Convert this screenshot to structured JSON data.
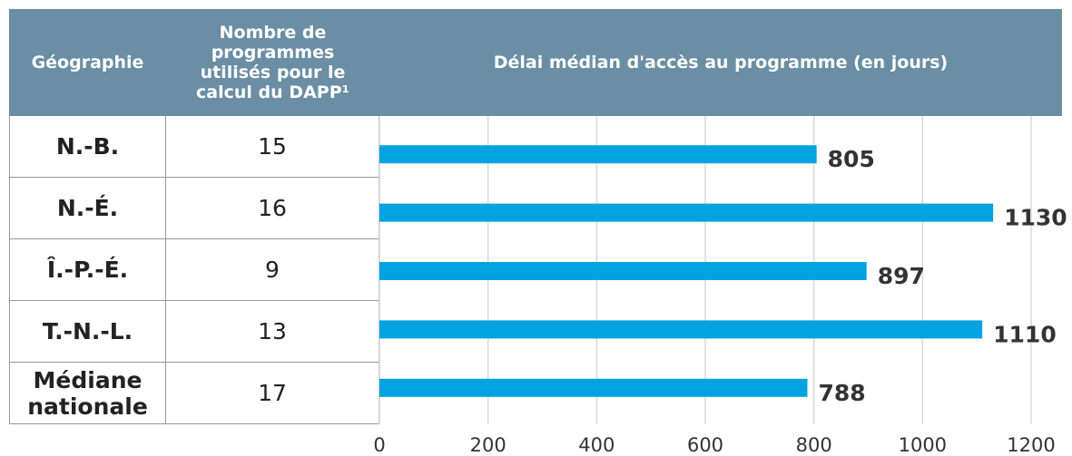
{
  "chart_data": {
    "type": "bar",
    "columns": [
      "Géographie",
      "Nombre de programmes utilisés pour le calcul du DAPP¹"
    ],
    "title": "Délai médian d'accès au programme (en jours)",
    "categories": [
      "N.-B.",
      "N.-É.",
      "Î.-P.-É.",
      "T.-N.-L.",
      "Médiane nationale"
    ],
    "program_counts": [
      15,
      16,
      9,
      13,
      17
    ],
    "values": [
      805,
      1130,
      897,
      1110,
      788
    ],
    "color": "#00a3e0",
    "xlim": [
      0,
      1200
    ],
    "xticks": [
      0,
      200,
      400,
      600,
      800,
      1000,
      1200
    ],
    "grid": true
  }
}
